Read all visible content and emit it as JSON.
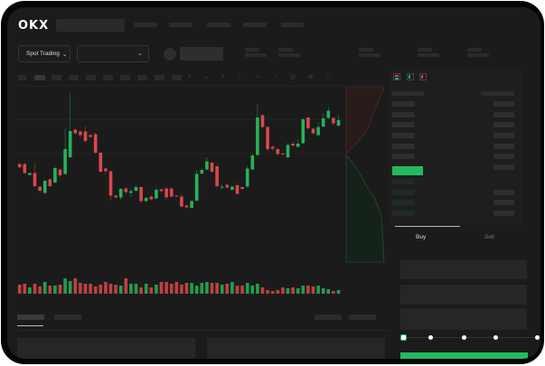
{
  "header": {
    "logo": "OKX"
  },
  "market": {
    "mode_label": "Spot Trading"
  },
  "trade": {
    "buy_tab": "Buy",
    "sell_tab": "Sell"
  },
  "colors": {
    "up": "#25b35a",
    "down": "#d9484c",
    "background": "#1b1b1b",
    "accent": "#22bb5e"
  },
  "order_form": {
    "slider_percent": 0
  },
  "chart_data": {
    "type": "candlestick",
    "ohlc": [
      [
        117,
        119,
        108,
        110
      ],
      [
        117,
        120,
        95,
        97
      ],
      [
        93,
        98,
        92,
        97
      ],
      [
        97,
        120,
        66,
        68
      ],
      [
        67,
        69,
        54,
        58
      ],
      [
        53,
        82,
        51,
        80
      ],
      [
        83,
        85,
        66,
        68
      ],
      [
        76,
        113,
        74,
        108
      ],
      [
        105,
        107,
        88,
        92
      ],
      [
        95,
        196,
        93,
        150
      ],
      [
        132,
        275,
        130,
        190
      ],
      [
        193,
        197,
        183,
        185
      ],
      [
        189,
        192,
        175,
        181
      ],
      [
        189,
        200,
        164,
        168
      ],
      [
        181,
        183,
        175,
        177
      ],
      [
        183,
        187,
        140,
        142
      ],
      [
        142,
        144,
        98,
        100
      ],
      [
        107,
        109,
        94,
        101
      ],
      [
        101,
        103,
        37,
        47
      ],
      [
        47,
        50,
        41,
        43
      ],
      [
        43,
        64,
        38,
        62
      ],
      [
        63,
        66,
        50,
        55
      ],
      [
        53,
        62,
        44,
        57
      ],
      [
        58,
        70,
        56,
        66
      ],
      [
        66,
        68,
        30,
        35
      ],
      [
        35,
        44,
        33,
        42
      ],
      [
        45,
        47,
        37,
        39
      ],
      [
        41,
        64,
        39,
        60
      ],
      [
        61,
        63,
        55,
        57
      ],
      [
        63,
        65,
        38,
        43
      ],
      [
        63,
        65,
        43,
        45
      ],
      [
        47,
        48,
        44,
        45
      ],
      [
        45,
        50,
        21,
        23
      ],
      [
        25,
        27,
        19,
        21
      ],
      [
        20,
        37,
        18,
        35
      ],
      [
        36,
        104,
        34,
        95
      ],
      [
        96,
        107,
        94,
        104
      ],
      [
        105,
        132,
        103,
        123
      ],
      [
        120,
        122,
        98,
        100
      ],
      [
        112,
        117,
        64,
        68
      ],
      [
        65,
        72,
        60,
        67
      ],
      [
        71,
        73,
        63,
        65
      ],
      [
        60,
        69,
        58,
        67
      ],
      [
        70,
        75,
        49,
        51
      ],
      [
        66,
        68,
        60,
        62
      ],
      [
        67,
        113,
        65,
        107
      ],
      [
        105,
        140,
        103,
        136
      ],
      [
        137,
        250,
        135,
        220
      ],
      [
        225,
        228,
        195,
        199
      ],
      [
        199,
        201,
        144,
        150
      ],
      [
        155,
        158,
        146,
        151
      ],
      [
        150,
        152,
        136,
        139
      ],
      [
        140,
        145,
        137,
        138
      ],
      [
        132,
        164,
        130,
        159
      ],
      [
        162,
        168,
        156,
        158
      ],
      [
        155,
        172,
        153,
        162
      ],
      [
        163,
        218,
        161,
        216
      ],
      [
        220,
        222,
        194,
        196
      ],
      [
        195,
        197,
        183,
        185
      ],
      [
        181,
        210,
        179,
        199
      ],
      [
        200,
        230,
        198,
        218
      ],
      [
        219,
        243,
        217,
        235
      ],
      [
        219,
        221,
        202,
        207
      ],
      [
        202,
        226,
        200,
        214
      ]
    ],
    "volumes": [
      10,
      11,
      7,
      11,
      8,
      13,
      9,
      9,
      10,
      17,
      14,
      17,
      12,
      11,
      11,
      8,
      10,
      13,
      11,
      10,
      9,
      17,
      11,
      11,
      7,
      11,
      7,
      10,
      13,
      13,
      11,
      13,
      10,
      12,
      12,
      9,
      12,
      13,
      12,
      12,
      10,
      11,
      13,
      9,
      9,
      12,
      9,
      11,
      7,
      4,
      3,
      4,
      7,
      6,
      7,
      6,
      9,
      9,
      8,
      9,
      6,
      5,
      3,
      4
    ]
  }
}
